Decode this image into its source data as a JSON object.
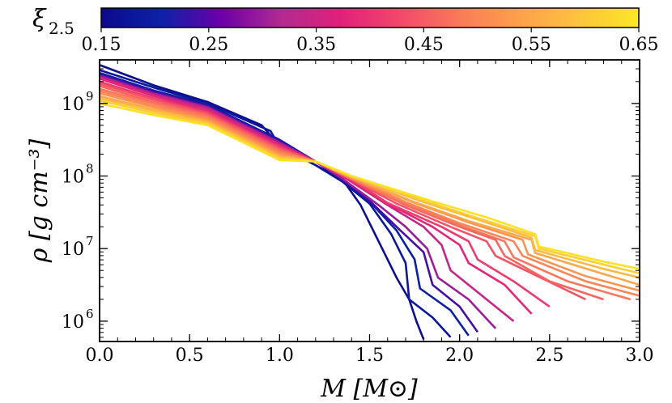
{
  "chart_data": {
    "type": "line",
    "title": "",
    "xlabel": "M [M⊙]",
    "ylabel": "ρ [g cm⁻³]",
    "xlim": [
      0.0,
      3.0
    ],
    "ylim_log10": [
      5.72,
      9.6
    ],
    "y_scale": "log",
    "x_ticks": [
      "0.0",
      "0.5",
      "1.0",
      "1.5",
      "2.0",
      "2.5",
      "3.0"
    ],
    "y_ticks": [
      {
        "base": "10",
        "exp": "9",
        "value": 1000000000.0
      },
      {
        "base": "10",
        "exp": "8",
        "value": 100000000.0
      },
      {
        "base": "10",
        "exp": "7",
        "value": 10000000.0
      },
      {
        "base": "10",
        "exp": "6",
        "value": 1000000.0
      }
    ],
    "colorbar": {
      "label": "ξ",
      "label_sub": "2.5",
      "ticks": [
        "0.15",
        "0.25",
        "0.35",
        "0.45",
        "0.55",
        "0.65"
      ],
      "range": [
        0.15,
        0.65
      ],
      "colormap": "plasma",
      "stops": [
        "#0c0a8c",
        "#0c22a8",
        "#6a00a8",
        "#b12a90",
        "#e0217a",
        "#f2486a",
        "#fa7a5a",
        "#fca04c",
        "#fcc43c",
        "#fde725"
      ]
    },
    "series_description": "Family of stellar density profiles rho(M) colored by compactness xi_2.5",
    "series": [
      {
        "xi": 0.16,
        "x": [
          0.0,
          0.3,
          0.6,
          0.9,
          1.0,
          1.2,
          1.35,
          1.45,
          1.55,
          1.65,
          1.72,
          1.76,
          1.8
        ],
        "log_rho": [
          9.53,
          9.25,
          9.02,
          8.7,
          8.42,
          8.15,
          7.95,
          7.6,
          7.1,
          6.6,
          6.3,
          6.0,
          5.75
        ]
      },
      {
        "xi": 0.18,
        "x": [
          0.0,
          0.3,
          0.6,
          0.95,
          1.0,
          1.2,
          1.35,
          1.5,
          1.62,
          1.7,
          1.72,
          1.85,
          1.95
        ],
        "log_rho": [
          9.46,
          9.22,
          9.0,
          8.62,
          8.4,
          8.15,
          7.92,
          7.62,
          7.2,
          6.8,
          6.3,
          6.05,
          5.78
        ]
      },
      {
        "xi": 0.2,
        "x": [
          0.0,
          0.3,
          0.6,
          1.0,
          1.2,
          1.35,
          1.5,
          1.65,
          1.75,
          1.78,
          1.95,
          2.05
        ],
        "log_rho": [
          9.42,
          9.18,
          8.98,
          8.5,
          8.2,
          7.95,
          7.65,
          7.25,
          6.85,
          6.45,
          6.15,
          5.8
        ]
      },
      {
        "xi": 0.24,
        "x": [
          0.0,
          0.3,
          0.6,
          1.0,
          1.2,
          1.35,
          1.5,
          1.65,
          1.8,
          1.85,
          2.0,
          2.1
        ],
        "log_rho": [
          9.4,
          9.16,
          8.96,
          8.48,
          8.2,
          7.95,
          7.66,
          7.3,
          6.95,
          6.5,
          6.2,
          5.85
        ]
      },
      {
        "xi": 0.3,
        "x": [
          0.0,
          0.3,
          0.6,
          1.0,
          1.2,
          1.35,
          1.55,
          1.7,
          1.82,
          1.88,
          2.05,
          2.2
        ],
        "log_rho": [
          9.38,
          9.14,
          8.95,
          8.46,
          8.2,
          7.96,
          7.6,
          7.3,
          7.0,
          6.6,
          6.3,
          5.9
        ]
      },
      {
        "xi": 0.34,
        "x": [
          0.0,
          0.3,
          0.6,
          1.0,
          1.2,
          1.38,
          1.6,
          1.8,
          1.9,
          1.95,
          2.1,
          2.3
        ],
        "log_rho": [
          9.36,
          9.12,
          8.93,
          8.44,
          8.2,
          7.95,
          7.6,
          7.3,
          7.05,
          6.7,
          6.4,
          6.0
        ]
      },
      {
        "xi": 0.38,
        "x": [
          0.0,
          0.3,
          0.6,
          1.0,
          1.2,
          1.38,
          1.6,
          1.85,
          2.0,
          2.05,
          2.25,
          2.4
        ],
        "log_rho": [
          9.34,
          9.1,
          8.9,
          8.42,
          8.2,
          7.96,
          7.62,
          7.3,
          7.05,
          6.8,
          6.5,
          6.1
        ]
      },
      {
        "xi": 0.41,
        "x": [
          0.0,
          0.3,
          0.6,
          1.0,
          1.2,
          1.4,
          1.6,
          1.9,
          2.05,
          2.1,
          2.3,
          2.5
        ],
        "log_rho": [
          9.3,
          9.07,
          8.88,
          8.4,
          8.2,
          7.95,
          7.63,
          7.3,
          7.1,
          6.85,
          6.55,
          6.2
        ]
      },
      {
        "xi": 0.44,
        "x": [
          0.0,
          0.3,
          0.6,
          1.0,
          1.2,
          1.4,
          1.65,
          1.95,
          2.15,
          2.2,
          2.45,
          2.7
        ],
        "log_rho": [
          9.27,
          9.05,
          8.86,
          8.38,
          8.2,
          7.95,
          7.62,
          7.3,
          7.1,
          6.9,
          6.6,
          6.3
        ]
      },
      {
        "xi": 0.46,
        "x": [
          0.0,
          0.3,
          0.6,
          1.0,
          1.2,
          1.4,
          1.7,
          2.0,
          2.2,
          2.25,
          2.5,
          2.8
        ],
        "log_rho": [
          9.24,
          9.02,
          8.84,
          8.36,
          8.2,
          7.96,
          7.6,
          7.3,
          7.12,
          6.9,
          6.55,
          6.3
        ]
      },
      {
        "xi": 0.48,
        "x": [
          0.0,
          0.3,
          0.6,
          1.0,
          1.2,
          1.4,
          1.7,
          2.0,
          2.25,
          2.3,
          2.6,
          2.95
        ],
        "log_rho": [
          9.2,
          9.0,
          8.82,
          8.34,
          8.2,
          7.96,
          7.62,
          7.32,
          7.1,
          6.88,
          6.55,
          6.3
        ]
      },
      {
        "xi": 0.5,
        "x": [
          0.0,
          0.3,
          0.6,
          1.0,
          1.2,
          1.4,
          1.7,
          2.0,
          2.3,
          2.35,
          2.7,
          3.0
        ],
        "log_rho": [
          9.17,
          8.97,
          8.8,
          8.32,
          8.2,
          7.97,
          7.64,
          7.35,
          7.1,
          6.9,
          6.55,
          6.35
        ]
      },
      {
        "xi": 0.52,
        "x": [
          0.0,
          0.3,
          0.6,
          1.0,
          1.2,
          1.4,
          1.75,
          2.05,
          2.35,
          2.38,
          2.7,
          3.0
        ],
        "log_rho": [
          9.14,
          8.95,
          8.78,
          8.3,
          8.2,
          7.98,
          7.63,
          7.36,
          7.12,
          6.92,
          6.62,
          6.42
        ]
      },
      {
        "xi": 0.55,
        "x": [
          0.0,
          0.3,
          0.6,
          1.0,
          1.2,
          1.4,
          1.75,
          2.05,
          2.4,
          2.42,
          2.8,
          3.0
        ],
        "log_rho": [
          9.1,
          8.92,
          8.76,
          8.28,
          8.2,
          7.98,
          7.64,
          7.38,
          7.12,
          6.94,
          6.65,
          6.5
        ]
      },
      {
        "xi": 0.58,
        "x": [
          0.0,
          0.3,
          0.6,
          1.0,
          1.2,
          1.4,
          1.8,
          2.1,
          2.4,
          2.42,
          2.8,
          3.0
        ],
        "log_rho": [
          9.07,
          8.9,
          8.74,
          8.26,
          8.2,
          7.99,
          7.64,
          7.4,
          7.15,
          6.98,
          6.72,
          6.6
        ]
      },
      {
        "xi": 0.61,
        "x": [
          0.0,
          0.3,
          0.6,
          1.0,
          1.2,
          1.4,
          1.8,
          2.1,
          2.42,
          2.44,
          2.8,
          3.0
        ],
        "log_rho": [
          9.04,
          8.87,
          8.72,
          8.24,
          8.2,
          8.0,
          7.66,
          7.42,
          7.17,
          7.0,
          6.78,
          6.66
        ]
      },
      {
        "xi": 0.64,
        "x": [
          0.0,
          0.3,
          0.6,
          1.0,
          1.2,
          1.4,
          1.85,
          2.15,
          2.42,
          2.44,
          2.8,
          3.0
        ],
        "log_rho": [
          9.0,
          8.84,
          8.7,
          8.22,
          8.2,
          8.0,
          7.65,
          7.43,
          7.2,
          7.03,
          6.82,
          6.72
        ]
      }
    ]
  }
}
